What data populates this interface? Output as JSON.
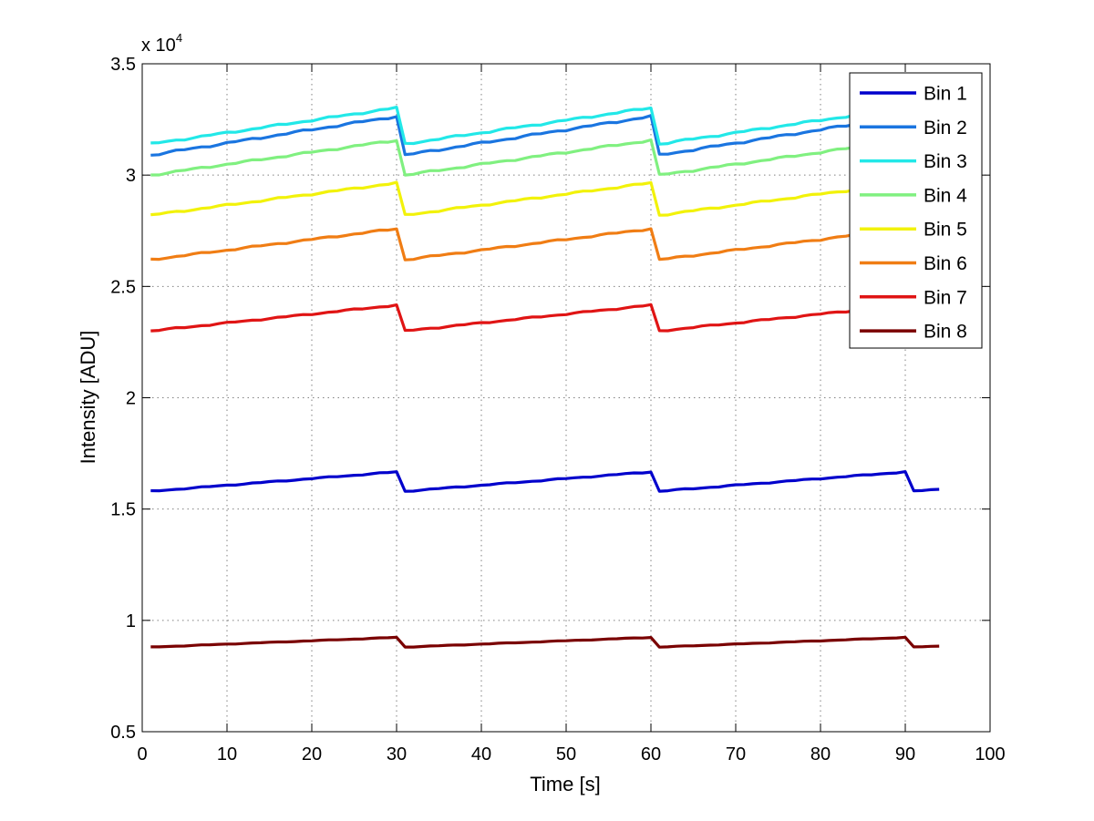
{
  "chart_data": {
    "type": "line",
    "title": "",
    "xlabel": "Time [s]",
    "ylabel": "Intensity [ADU]",
    "xlim": [
      0,
      100
    ],
    "ylim": [
      5000,
      35000
    ],
    "xticks": [
      0,
      10,
      20,
      30,
      40,
      50,
      60,
      70,
      80,
      90,
      100
    ],
    "xtick_labels": [
      "0",
      "10",
      "20",
      "30",
      "40",
      "50",
      "60",
      "70",
      "80",
      "90",
      "100"
    ],
    "yticks": [
      5000,
      10000,
      15000,
      20000,
      25000,
      30000,
      35000
    ],
    "ytick_labels": [
      "0.5",
      "1",
      "1.5",
      "2",
      "2.5",
      "3",
      "3.5"
    ],
    "y_exponent_label": "x 10",
    "y_exponent": "4",
    "grid": true,
    "legend_position": "top-right",
    "series": [
      {
        "name": "Bin 1",
        "color": "#0000cc",
        "base": 15800,
        "slope": 30
      },
      {
        "name": "Bin 2",
        "color": "#1a75e0",
        "base": 30900,
        "slope": 60
      },
      {
        "name": "Bin 3",
        "color": "#22e8e8",
        "base": 31400,
        "slope": 56
      },
      {
        "name": "Bin 4",
        "color": "#80f080",
        "base": 30000,
        "slope": 54
      },
      {
        "name": "Bin 5",
        "color": "#f2f20a",
        "base": 28200,
        "slope": 50
      },
      {
        "name": "Bin 6",
        "color": "#f07d14",
        "base": 26200,
        "slope": 48
      },
      {
        "name": "Bin 7",
        "color": "#e01414",
        "base": 23000,
        "slope": 40
      },
      {
        "name": "Bin 8",
        "color": "#7a0000",
        "base": 8800,
        "slope": 15
      }
    ],
    "x_range": [
      1,
      94
    ]
  }
}
